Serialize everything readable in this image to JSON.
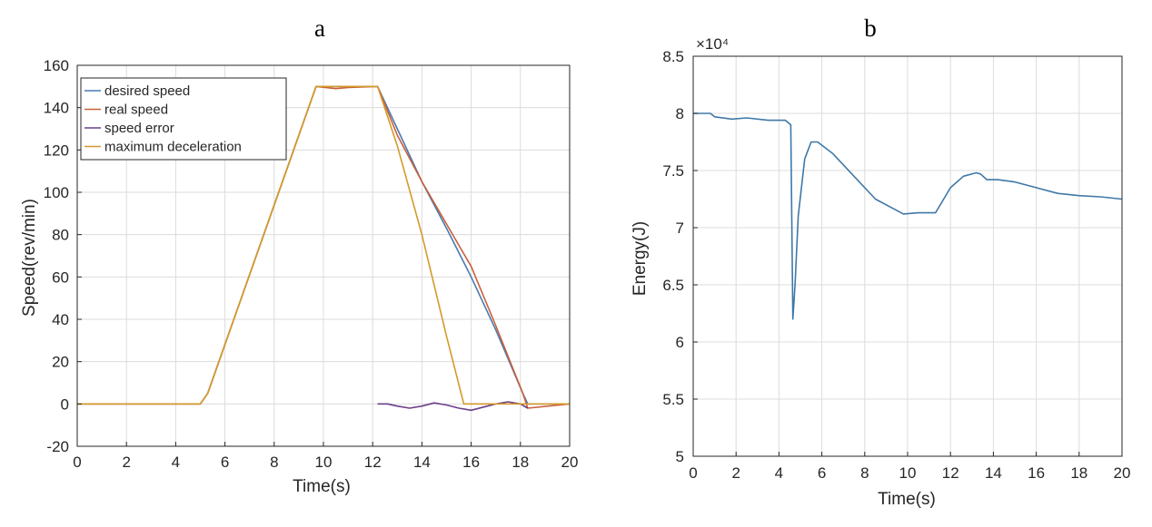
{
  "chart_data": [
    {
      "type": "line",
      "panel_label": "a",
      "xlabel": "Time(s)",
      "ylabel": "Speed(rev/min)",
      "xlim": [
        0,
        20
      ],
      "ylim": [
        -20,
        160
      ],
      "xticks": [
        "0",
        "2",
        "4",
        "6",
        "8",
        "10",
        "12",
        "14",
        "16",
        "18",
        "20"
      ],
      "yticks": [
        "-20",
        "0",
        "20",
        "40",
        "60",
        "80",
        "100",
        "120",
        "140",
        "160"
      ],
      "grid": true,
      "legend": "top-left",
      "series": [
        {
          "name": "desired speed",
          "color": "#4a7ab0",
          "x": [
            0,
            5,
            5.3,
            9.7,
            12.2,
            13,
            14,
            15,
            16,
            17,
            18.1,
            18.3,
            20
          ],
          "y": [
            0,
            0,
            5,
            150,
            150,
            130,
            105,
            83,
            60,
            35,
            5,
            0,
            0
          ]
        },
        {
          "name": "real speed",
          "color": "#c9603a",
          "x": [
            0,
            5,
            5.3,
            9.7,
            10.5,
            11,
            12.2,
            13,
            14,
            15,
            16,
            17,
            18.1,
            18.3,
            20
          ],
          "y": [
            0,
            0,
            5,
            150,
            149,
            149.5,
            150,
            127,
            105,
            85,
            65,
            37,
            5,
            -2,
            0
          ]
        },
        {
          "name": "speed error",
          "color": "#6b3f8a",
          "x": [
            12.2,
            12.6,
            13,
            13.5,
            14,
            14.5,
            15,
            15.5,
            16,
            16.5,
            17,
            17.5,
            18,
            18.3
          ],
          "y": [
            0,
            0,
            -1,
            -2,
            -1,
            0.5,
            -0.5,
            -2,
            -3,
            -1.5,
            0,
            1,
            0,
            -2
          ]
        },
        {
          "name": "maximum deceleration",
          "color": "#d49a2a",
          "x": [
            0,
            5,
            5.3,
            9.7,
            12.2,
            13,
            14,
            15,
            15.7,
            20
          ],
          "y": [
            0,
            0,
            5,
            150,
            150,
            122,
            80,
            32,
            0,
            0
          ]
        }
      ]
    },
    {
      "type": "line",
      "panel_label": "b",
      "xlabel": "Time(s)",
      "ylabel": "Energy(J)",
      "scale_label": "×10⁴",
      "xlim": [
        0,
        20
      ],
      "ylim": [
        5,
        8.5
      ],
      "xticks": [
        "0",
        "2",
        "4",
        "6",
        "8",
        "10",
        "12",
        "14",
        "16",
        "18",
        "20"
      ],
      "yticks": [
        "5",
        "5.5",
        "6",
        "6.5",
        "7",
        "7.5",
        "8",
        "8.5"
      ],
      "grid": true,
      "series": [
        {
          "color": "#3f78a8",
          "x": [
            0,
            0.8,
            1,
            1.8,
            2.5,
            3.5,
            4.3,
            4.55,
            4.65,
            4.75,
            4.9,
            5.2,
            5.5,
            5.8,
            6.5,
            7.5,
            8.5,
            9.5,
            9.8,
            10.5,
            11.3,
            12,
            12.6,
            13.2,
            13.4,
            13.7,
            14.2,
            15,
            16,
            17,
            18,
            19,
            20
          ],
          "y": [
            8.0,
            8.0,
            7.97,
            7.95,
            7.96,
            7.94,
            7.94,
            7.9,
            6.2,
            6.5,
            7.1,
            7.6,
            7.75,
            7.75,
            7.65,
            7.45,
            7.25,
            7.15,
            7.12,
            7.13,
            7.13,
            7.35,
            7.45,
            7.48,
            7.47,
            7.42,
            7.42,
            7.4,
            7.35,
            7.3,
            7.28,
            7.27,
            7.25
          ]
        }
      ]
    }
  ]
}
